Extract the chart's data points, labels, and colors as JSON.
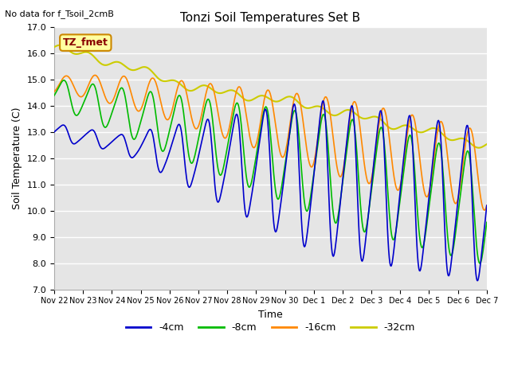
{
  "title": "Tonzi Soil Temperatures Set B",
  "top_left_text": "No data for f_Tsoil_2cmB",
  "xlabel": "Time",
  "ylabel": "Soil Temperature (C)",
  "ylim": [
    7.0,
    17.0
  ],
  "yticks": [
    7.0,
    8.0,
    9.0,
    10.0,
    11.0,
    12.0,
    13.0,
    14.0,
    15.0,
    16.0,
    17.0
  ],
  "bg_color": "#e5e5e5",
  "legend_box_color": "#ffffa0",
  "legend_box_border": "#cc8800",
  "legend_text": "TZ_fmet",
  "colors": {
    "-4cm": "#0000cc",
    "-8cm": "#00bb00",
    "-16cm": "#ff8800",
    "-32cm": "#cccc00"
  },
  "xtick_labels": [
    "Nov 22",
    "Nov 23",
    "Nov 24",
    "Nov 25",
    "Nov 26",
    "Nov 27",
    "Nov 28",
    "Nov 29",
    "Nov 30",
    "Dec 1",
    "Dec 2",
    "Dec 3",
    "Dec 4",
    "Dec 5",
    "Dec 6",
    "Dec 7"
  ],
  "num_days": 15.0,
  "pts_per_day": 48
}
